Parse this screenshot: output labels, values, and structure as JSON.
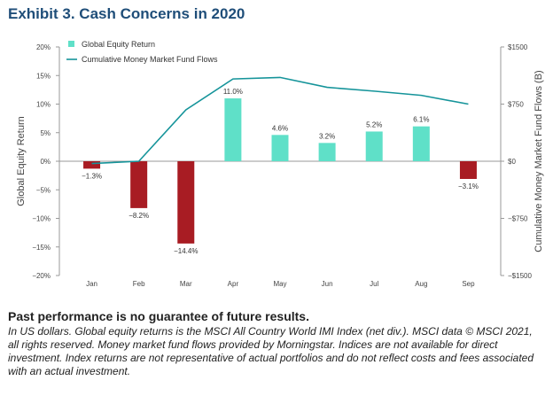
{
  "title": "Exhibit 3. Cash Concerns in 2020",
  "chart_data": {
    "type": "bar",
    "categories": [
      "Jan",
      "Feb",
      "Mar",
      "Apr",
      "May",
      "Jun",
      "Jul",
      "Aug",
      "Sep"
    ],
    "series": [
      {
        "name": "Global Equity Return",
        "type": "bar",
        "axis": "left",
        "values": [
          -1.3,
          -8.2,
          -14.4,
          11.0,
          4.6,
          3.2,
          5.2,
          6.1,
          -3.1
        ],
        "labels": [
          "−1.3%",
          "−8.2%",
          "−14.4%",
          "11.0%",
          "4.6%",
          "3.2%",
          "5.2%",
          "6.1%",
          "−3.1%"
        ]
      },
      {
        "name": "Cumulative Money Market Fund Flows",
        "type": "line",
        "axis": "right",
        "values": [
          -30,
          0,
          675,
          1080,
          1100,
          970,
          920,
          865,
          750
        ]
      }
    ],
    "ylabel": "Global Equity Return",
    "y2label": "Cumulative Money Market Fund Flows (B)",
    "ylim": [
      -20,
      20
    ],
    "y2lim": [
      -1500,
      1500
    ],
    "yticks": [
      "20%",
      "15%",
      "10%",
      "5%",
      "0%",
      "−5%",
      "−10%",
      "−15%",
      "−20%"
    ],
    "y2ticks": [
      "$1500",
      "$750",
      "$0",
      "−$750",
      "−$1500"
    ],
    "legend_position": "top-left",
    "grid": false,
    "colors": {
      "positive_bar": "#5fe0c8",
      "negative_bar": "#a81c23",
      "line": "#15949a",
      "axis": "#999999"
    }
  },
  "footer": {
    "disclaimer": "Past performance is no guarantee of future results.",
    "note": "In US dollars. Global equity returns is the MSCI All Country World IMI Index (net div.). MSCI data © MSCI 2021, all rights reserved. Money market fund flows provided by Morningstar. Indices are not available for direct investment. Index returns are not representative of actual portfolios and do not reflect costs and fees associated with an actual investment."
  }
}
